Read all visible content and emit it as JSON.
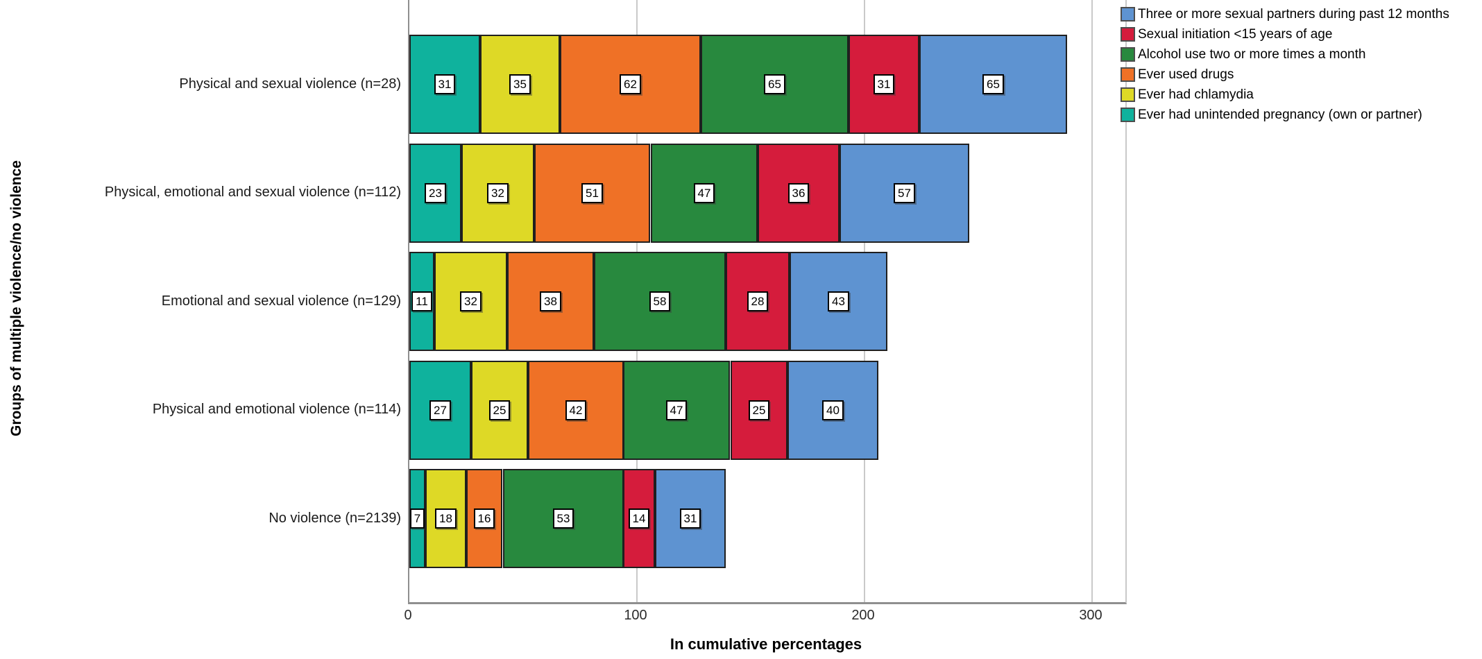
{
  "chart_data": {
    "type": "bar",
    "orientation": "horizontal",
    "stacked": true,
    "xlabel": "In cumulative percentages",
    "ylabel": "Groups of multiple violence/no violence",
    "x_ticks": [
      0,
      100,
      200,
      300
    ],
    "xlim": [
      0,
      314
    ],
    "grid": true,
    "legend_position": "top-right",
    "categories": [
      "Physical and sexual violence (n=28)",
      "Physical, emotional and sexual violence (n=112)",
      "Emotional and sexual violence (n=129)",
      "Physical and emotional violence (n=114)",
      "No violence (n=2139)"
    ],
    "series": [
      {
        "name": "Ever had unintended pregnancy (own or partner)",
        "color": "#0fb29d",
        "values": [
          31,
          23,
          11,
          27,
          7
        ]
      },
      {
        "name": "Ever had chlamydia",
        "color": "#ded926",
        "values": [
          35,
          32,
          32,
          25,
          18
        ]
      },
      {
        "name": "Ever used drugs",
        "color": "#ef7126",
        "values": [
          62,
          51,
          38,
          42,
          16
        ]
      },
      {
        "name": "Alcohol use two or more times a month",
        "color": "#28893e",
        "values": [
          65,
          47,
          58,
          47,
          53
        ]
      },
      {
        "name": "Sexual initiation <15 years of age",
        "color": "#d51c3c",
        "values": [
          31,
          36,
          28,
          25,
          14
        ]
      },
      {
        "name": "Three or more sexual partners during past 12 months",
        "color": "#5e93d1",
        "values": [
          65,
          57,
          43,
          40,
          31
        ]
      }
    ],
    "legend_order": [
      "Three or more sexual partners during past 12 months",
      "Sexual initiation <15 years of age",
      "Alcohol use two or more times a month",
      "Ever used drugs",
      "Ever had chlamydia",
      "Ever had unintended pregnancy (own or partner)"
    ]
  }
}
